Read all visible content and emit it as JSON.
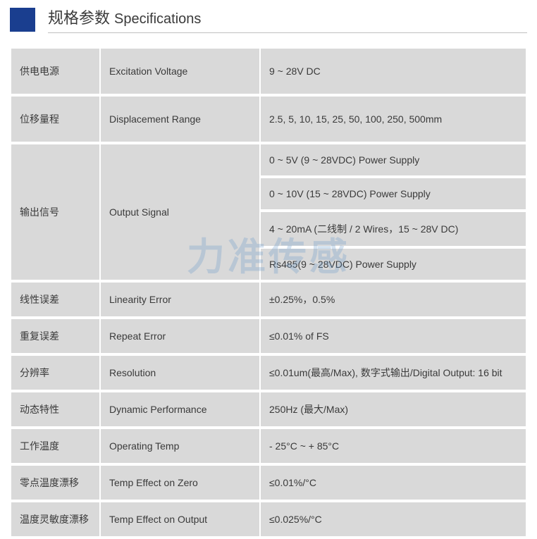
{
  "header": {
    "title_cn": "规格参数",
    "title_en": "Specifications"
  },
  "watermark": "力准传感",
  "colors": {
    "header_square": "#1a3e8f",
    "cell_bg": "#d9d9d9",
    "text": "#3a3a3a",
    "watermark": "rgba(100, 150, 200, 0.28)",
    "border": "#c0c0c0"
  },
  "rows": [
    {
      "param_cn": "供电电源",
      "param_en": "Excitation Voltage",
      "values": [
        "9 ~ 28V DC"
      ],
      "tall": true
    },
    {
      "param_cn": "位移量程",
      "param_en": "Displacement Range",
      "values": [
        "2.5, 5, 10, 15, 25, 50, 100, 250, 500mm"
      ],
      "tall": true
    },
    {
      "param_cn": "输出信号",
      "param_en": "Output Signal",
      "values": [
        "0 ~ 5V (9 ~ 28VDC) Power Supply",
        "0 ~ 10V (15 ~ 28VDC) Power Supply",
        "4 ~ 20mA (二线制 / 2 Wires，15 ~ 28V DC)",
        "Rs485(9 ~ 28VDC) Power Supply"
      ],
      "tall": false
    },
    {
      "param_cn": "线性误差",
      "param_en": "Linearity Error",
      "values": [
        "±0.25%，0.5%"
      ],
      "tall": false
    },
    {
      "param_cn": "重复误差",
      "param_en": "Repeat Error",
      "values": [
        "≤0.01% of FS"
      ],
      "tall": false
    },
    {
      "param_cn": "分辨率",
      "param_en": "Resolution",
      "values": [
        "≤0.01um(最高/Max), 数字式输出/Digital Output: 16 bit"
      ],
      "tall": false
    },
    {
      "param_cn": "动态特性",
      "param_en": "Dynamic Performance",
      "values": [
        "250Hz (最大/Max)"
      ],
      "tall": false
    },
    {
      "param_cn": "工作温度",
      "param_en": "Operating Temp",
      "values": [
        "- 25°C ~ + 85°C"
      ],
      "tall": false
    },
    {
      "param_cn": "零点温度漂移",
      "param_en": "Temp Effect on Zero",
      "values": [
        "≤0.01%/°C"
      ],
      "tall": false
    },
    {
      "param_cn": "温度灵敏度漂移",
      "param_en": "Temp Effect on Output",
      "values": [
        "≤0.025%/°C"
      ],
      "tall": false
    }
  ]
}
